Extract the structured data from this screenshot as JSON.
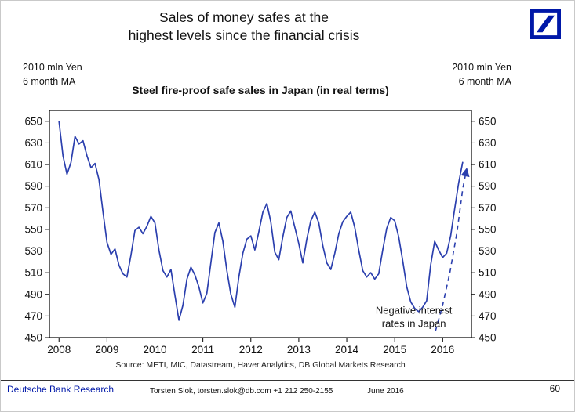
{
  "header": {
    "title_line1": "Sales of money safes at the",
    "title_line2": "highest levels since the financial crisis"
  },
  "icons": {
    "brand": "deutsche-bank-logo"
  },
  "axis_notes": {
    "left": {
      "line1": "2010 mln Yen",
      "line2": "6 month MA"
    },
    "right": {
      "line1": "2010 mln Yen",
      "line2": "6 month MA"
    }
  },
  "chart_data": {
    "type": "line",
    "title": "Steel fire-proof safe sales in Japan (in real terms)",
    "ylabel": "2010 mln Yen, 6 month MA",
    "ylim": [
      450,
      650
    ],
    "yticks": [
      450,
      470,
      490,
      510,
      530,
      550,
      570,
      590,
      610,
      630,
      650
    ],
    "xlim": [
      2007.8,
      2016.6
    ],
    "xticks": [
      2008,
      2009,
      2010,
      2011,
      2012,
      2013,
      2014,
      2015,
      2016
    ],
    "grid": false,
    "legend": "none",
    "line_color": "#2b3fae",
    "series": [
      {
        "name": "Steel fire-proof safe sales in Japan (real, 6 month MA)",
        "x_start": 2008.0,
        "x_step_years": 0.083333,
        "values": [
          650,
          618,
          601,
          612,
          636,
          629,
          632,
          618,
          607,
          611,
          596,
          566,
          538,
          527,
          532,
          517,
          509,
          506,
          526,
          549,
          552,
          546,
          553,
          562,
          556,
          531,
          512,
          506,
          513,
          489,
          466,
          480,
          504,
          515,
          508,
          497,
          482,
          491,
          519,
          547,
          556,
          539,
          512,
          490,
          478,
          506,
          528,
          541,
          544,
          531,
          548,
          566,
          574,
          557,
          529,
          522,
          543,
          561,
          567,
          552,
          537,
          519,
          541,
          558,
          566,
          556,
          535,
          519,
          513,
          528,
          546,
          557,
          562,
          566,
          552,
          531,
          512,
          506,
          510,
          504,
          509,
          531,
          551,
          561,
          558,
          543,
          521,
          497,
          483,
          477,
          474,
          478,
          484,
          517,
          539,
          531,
          524,
          528,
          544,
          569,
          593,
          612
        ]
      }
    ],
    "projection": {
      "style": "dashed-arrow",
      "x": [
        2015.85,
        2016.0,
        2016.15,
        2016.3,
        2016.42,
        2016.5
      ],
      "values": [
        456,
        480,
        510,
        548,
        588,
        606
      ]
    },
    "annotation": {
      "lines": [
        "Negative interest",
        "rates in Japan"
      ],
      "x": 2015.4,
      "y": 472
    }
  },
  "source": "Source: METI, MIC, Datastream, Haver Analytics, DB Global Markets Research",
  "footer": {
    "brand": "Deutsche Bank Research",
    "contact": "Torsten Slok, torsten.slok@db.com  +1 212 250-2155",
    "date": "June 2016",
    "page": "60"
  },
  "colors": {
    "brand_blue": "#0018A8",
    "line_blue": "#2b3fae",
    "text": "#000000"
  }
}
